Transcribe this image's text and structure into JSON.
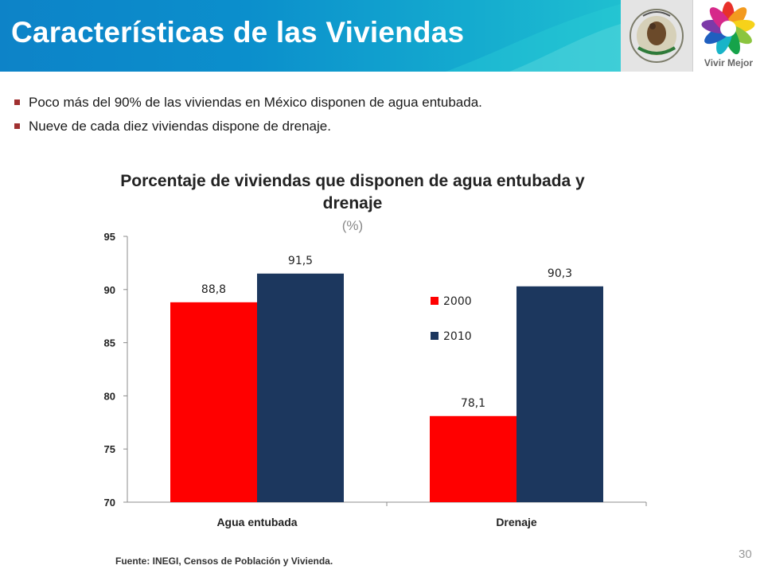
{
  "header": {
    "title": "Características de las Viviendas"
  },
  "logos": {
    "secondary_caption": "Vivir Mejor"
  },
  "bullets": [
    "Poco más del 90% de las viviendas en México disponen de agua entubada.",
    "Nueve de cada diez viviendas dispone de drenaje."
  ],
  "chart_data": {
    "type": "bar",
    "title": "Porcentaje de viviendas que disponen de agua entubada y drenaje",
    "subtitle": "(%)",
    "categories": [
      "Agua entubada",
      "Drenaje"
    ],
    "series": [
      {
        "name": "2000",
        "values": [
          88.8,
          78.1
        ],
        "labels": [
          "88,8",
          "78,1"
        ],
        "color": "#ff0000"
      },
      {
        "name": "2010",
        "values": [
          91.5,
          90.3
        ],
        "labels": [
          "91,5",
          "90,3"
        ],
        "color": "#1c375e"
      }
    ],
    "ylim": [
      70,
      95
    ],
    "yticks": [
      "70",
      "75",
      "80",
      "85",
      "90",
      "95"
    ],
    "legend_position": "inside-right",
    "grid": false
  },
  "footer": {
    "source": "Fuente: INEGI, Censos de Población y Vivienda.",
    "page_number": "30"
  }
}
